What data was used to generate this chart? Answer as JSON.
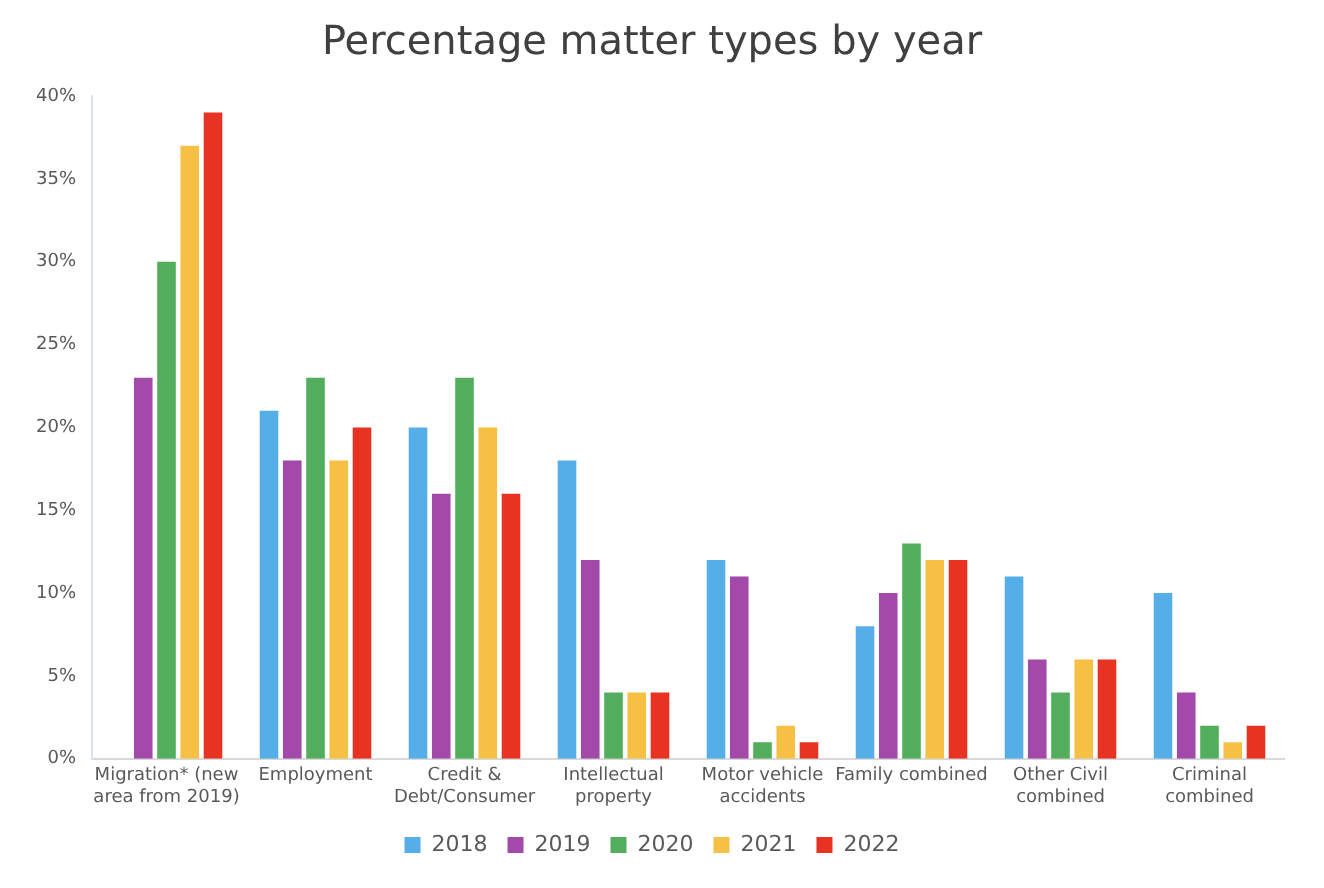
{
  "chart_data": {
    "type": "bar",
    "title": "Percentage matter types by year",
    "categories": [
      "Migration* (new area from 2019)",
      "Employment",
      "Credit & Debt/Consumer",
      "Intellectual property",
      "Motor vehicle accidents",
      "Family combined",
      "Other Civil combined",
      "Criminal combined"
    ],
    "series": [
      {
        "name": "2018",
        "color": "#55aee8",
        "values": [
          null,
          21,
          20,
          18,
          12,
          8,
          11,
          10
        ]
      },
      {
        "name": "2019",
        "color": "#a349a9",
        "values": [
          23,
          18,
          16,
          12,
          11,
          10,
          6,
          4
        ]
      },
      {
        "name": "2020",
        "color": "#52ad5c",
        "values": [
          30,
          23,
          23,
          4,
          1,
          13,
          4,
          2
        ]
      },
      {
        "name": "2021",
        "color": "#f5c044",
        "values": [
          37,
          18,
          20,
          4,
          2,
          12,
          6,
          1
        ]
      },
      {
        "name": "2022",
        "color": "#e83323",
        "values": [
          39,
          20,
          16,
          4,
          1,
          12,
          6,
          2
        ]
      }
    ],
    "ylim": [
      0,
      40
    ],
    "yticks": [
      {
        "value": 0,
        "label": "0%"
      },
      {
        "value": 5,
        "label": "5%"
      },
      {
        "value": 10,
        "label": "10%"
      },
      {
        "value": 15,
        "label": "15%"
      },
      {
        "value": 20,
        "label": "20%"
      },
      {
        "value": 25,
        "label": "25%"
      },
      {
        "value": 30,
        "label": "30%"
      },
      {
        "value": 35,
        "label": "35%"
      },
      {
        "value": 40,
        "label": "40%"
      }
    ],
    "grid": false,
    "legend": "bottom"
  }
}
